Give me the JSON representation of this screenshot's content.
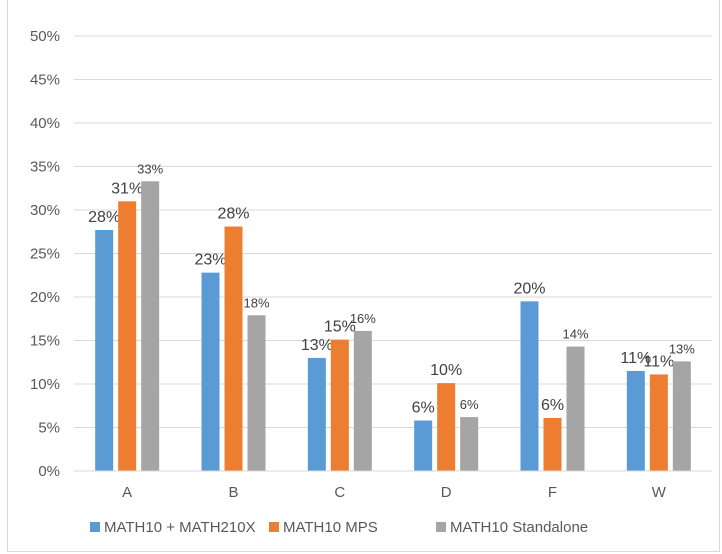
{
  "chart_data": {
    "type": "bar",
    "title": "",
    "categories": [
      "A",
      "B",
      "C",
      "D",
      "F",
      "W"
    ],
    "series": [
      {
        "name": "MATH10 + MATH210X",
        "color": "#5b9bd5",
        "values": [
          27.7,
          22.8,
          13.0,
          5.8,
          19.5,
          11.5
        ],
        "labels": [
          "28%",
          "23%",
          "13%",
          "6%",
          "20%",
          "11%"
        ]
      },
      {
        "name": "MATH10 MPS",
        "color": "#ed7d31",
        "values": [
          31.0,
          28.1,
          15.1,
          10.1,
          6.1,
          11.1
        ],
        "labels": [
          "31%",
          "28%",
          "15%",
          "10%",
          "6%",
          "11%"
        ]
      },
      {
        "name": "MATH10 Standalone",
        "color": "#a5a5a5",
        "values": [
          33.3,
          17.9,
          16.1,
          6.2,
          14.3,
          12.6
        ],
        "labels": [
          "33%",
          "18%",
          "16%",
          "6%",
          "14%",
          "13%"
        ]
      }
    ],
    "y_ticks": [
      "0%",
      "5%",
      "10%",
      "15%",
      "20%",
      "25%",
      "30%",
      "35%",
      "40%",
      "45%",
      "50%"
    ],
    "ylim": [
      0,
      50
    ],
    "xlabel": "",
    "ylabel": "",
    "grid": true,
    "legend_position": "bottom"
  }
}
